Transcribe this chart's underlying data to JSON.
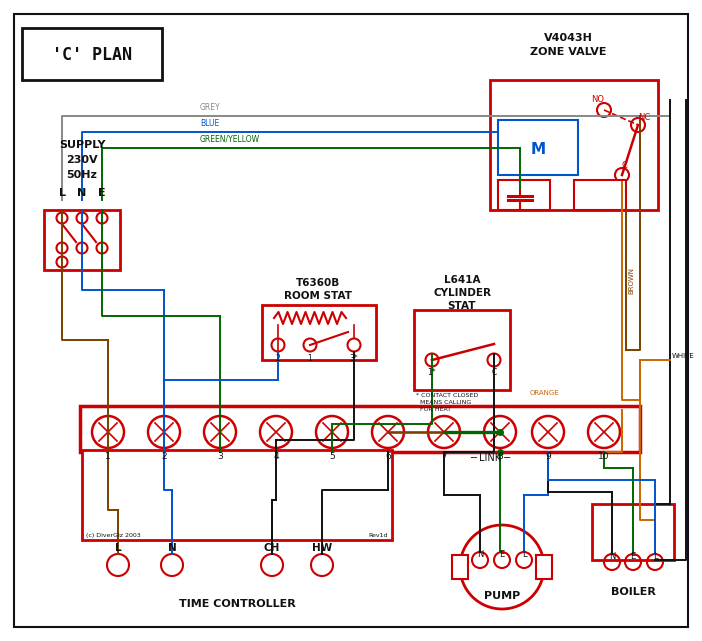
{
  "title": "'C' PLAN",
  "bg_color": "#ffffff",
  "red": "#cc0000",
  "blue": "#0055cc",
  "green": "#006600",
  "brown": "#7B3F00",
  "grey": "#888888",
  "orange": "#cc6600",
  "black": "#111111",
  "time_controller_label": "TIME CONTROLLER",
  "tc_sub_labels": [
    "L",
    "N",
    "CH",
    "HW"
  ],
  "terminal_labels": [
    "1",
    "2",
    "3",
    "4",
    "5",
    "6",
    "7",
    "8",
    "9",
    "10"
  ],
  "pump_label": "PUMP",
  "boiler_label": "BOILER",
  "copyright": "(c) DiverGiz 2003",
  "rev": "Rev1d"
}
